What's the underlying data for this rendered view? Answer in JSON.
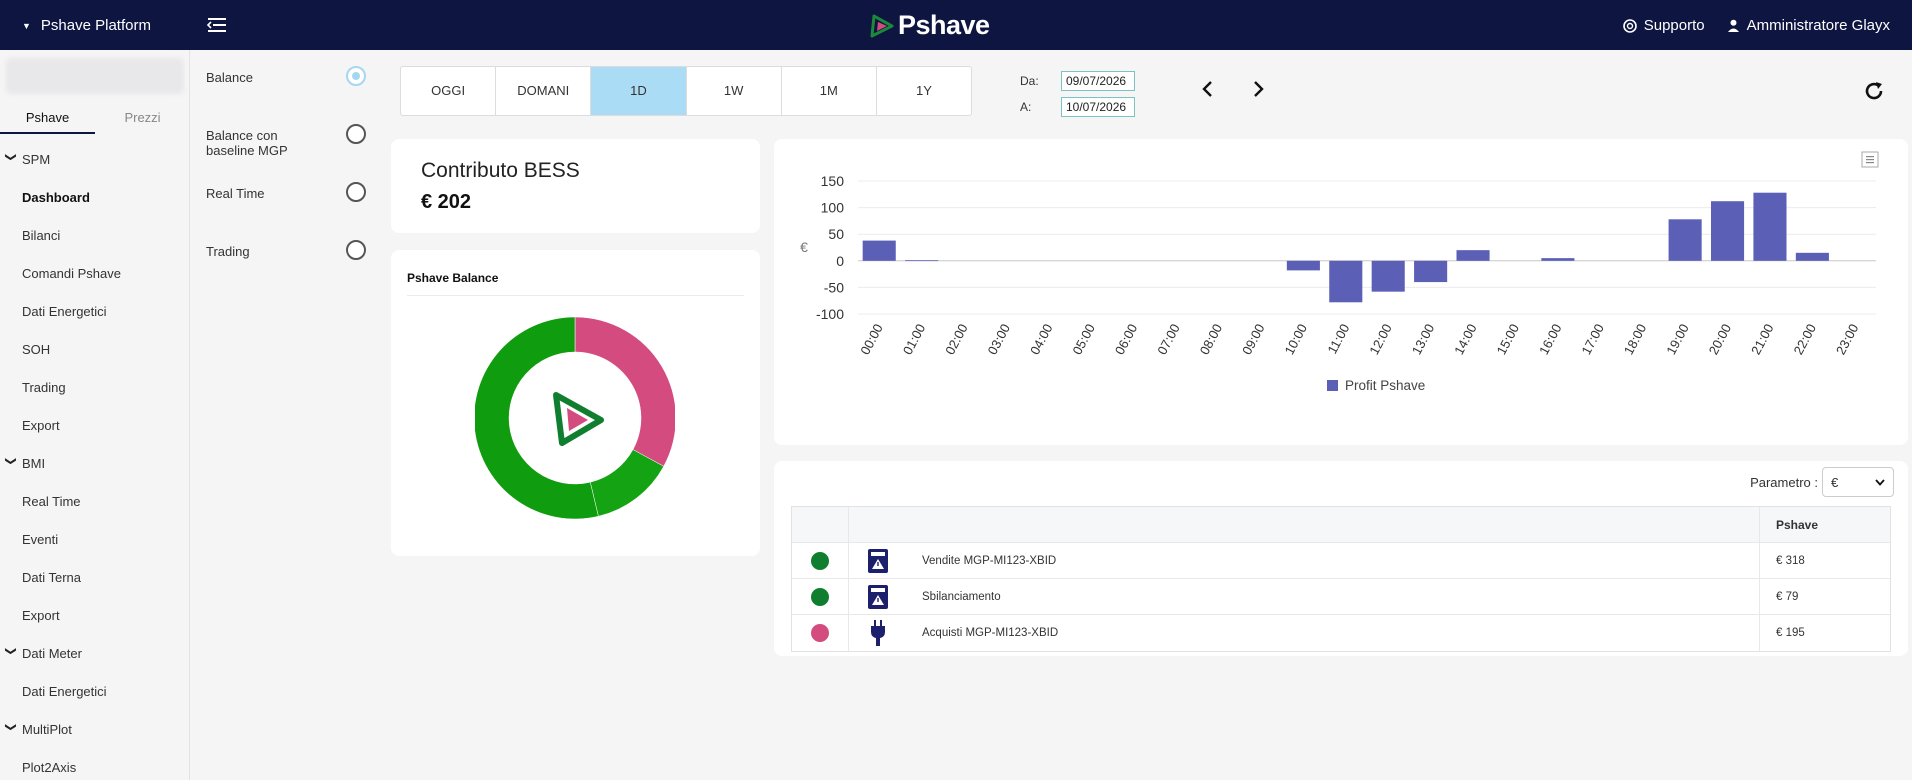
{
  "header": {
    "platform_label": "Pshave Platform",
    "brand": "Pshave",
    "support_label": "Supporto",
    "user_label": "Amministratore Glayx"
  },
  "sidebar": {
    "tabs": [
      {
        "label": "Pshave",
        "active": true
      },
      {
        "label": "Prezzi",
        "active": false
      }
    ],
    "menu": [
      {
        "label": "SPM",
        "type": "group"
      },
      {
        "label": "Dashboard",
        "type": "sub",
        "active": true
      },
      {
        "label": "Bilanci",
        "type": "sub"
      },
      {
        "label": "Comandi Pshave",
        "type": "sub"
      },
      {
        "label": "Dati Energetici",
        "type": "sub"
      },
      {
        "label": "SOH",
        "type": "sub"
      },
      {
        "label": "Trading",
        "type": "sub"
      },
      {
        "label": "Export",
        "type": "sub"
      },
      {
        "label": "BMI",
        "type": "group"
      },
      {
        "label": "Real Time",
        "type": "sub"
      },
      {
        "label": "Eventi",
        "type": "sub"
      },
      {
        "label": "Dati Terna",
        "type": "sub"
      },
      {
        "label": "Export",
        "type": "sub"
      },
      {
        "label": "Dati Meter",
        "type": "group"
      },
      {
        "label": "Dati Energetici",
        "type": "sub"
      },
      {
        "label": "MultiPlot",
        "type": "group"
      },
      {
        "label": "Plot2Axis",
        "type": "sub"
      }
    ]
  },
  "options": [
    {
      "label": "Balance",
      "selected": true
    },
    {
      "label": "Balance con baseline MGP",
      "selected": false
    },
    {
      "label": "Real Time",
      "selected": false
    },
    {
      "label": "Trading",
      "selected": false
    }
  ],
  "periods": [
    {
      "label": "OGGI",
      "active": false
    },
    {
      "label": "DOMANI",
      "active": false
    },
    {
      "label": "1D",
      "active": true
    },
    {
      "label": "1W",
      "active": false
    },
    {
      "label": "1M",
      "active": false
    },
    {
      "label": "1Y",
      "active": false
    }
  ],
  "dates": {
    "from_label": "Da:",
    "from_value": "09/07/2026",
    "to_label": "A:",
    "to_value": "10/07/2026"
  },
  "bess": {
    "title": "Contributo BESS",
    "value": "€ 202"
  },
  "donut_card": {
    "title": "Pshave Balance"
  },
  "chart_data": {
    "type": "bar",
    "title": "",
    "ylabel": "€",
    "xlabel": "",
    "ylim": [
      -100,
      150
    ],
    "yticks": [
      150,
      100,
      50,
      0,
      -50,
      -100
    ],
    "categories": [
      "00:00",
      "01:00",
      "02:00",
      "03:00",
      "04:00",
      "05:00",
      "06:00",
      "07:00",
      "08:00",
      "09:00",
      "10:00",
      "11:00",
      "12:00",
      "13:00",
      "14:00",
      "15:00",
      "16:00",
      "17:00",
      "18:00",
      "19:00",
      "20:00",
      "21:00",
      "22:00",
      "23:00"
    ],
    "series": [
      {
        "name": "Profit Pshave",
        "color": "#5b5fb5",
        "values": [
          38,
          1,
          0,
          0,
          0,
          0,
          0,
          0,
          0,
          0,
          -18,
          -78,
          -58,
          -40,
          20,
          0,
          5,
          0,
          0,
          78,
          112,
          128,
          15,
          0
        ]
      }
    ],
    "legend": "bottom",
    "grid": true
  },
  "donut_data": {
    "type": "pie",
    "slices": [
      {
        "name": "Acquisti MGP-MI123-XBID",
        "value": 195,
        "color": "#d44c7f"
      },
      {
        "name": "Sbilanciamento",
        "value": 79,
        "color": "#13a313"
      },
      {
        "name": "Vendite MGP-MI123-XBID",
        "value": 318,
        "color": "#0f9c0f"
      }
    ]
  },
  "table": {
    "param_label": "Parametro :",
    "param_value": "€",
    "column_header": "Pshave",
    "rows": [
      {
        "label": "Vendite MGP-MI123-XBID",
        "value": "€ 318",
        "dot_color": "#0f7f2f",
        "icon": "sale-tower-icon"
      },
      {
        "label": "Sbilanciamento",
        "value": "€ 79",
        "dot_color": "#0f7f2f",
        "icon": "imbalance-tower-icon"
      },
      {
        "label": "Acquisti MGP-MI123-XBID",
        "value": "€ 195",
        "dot_color": "#d44c7f",
        "icon": "plug-icon"
      }
    ]
  }
}
